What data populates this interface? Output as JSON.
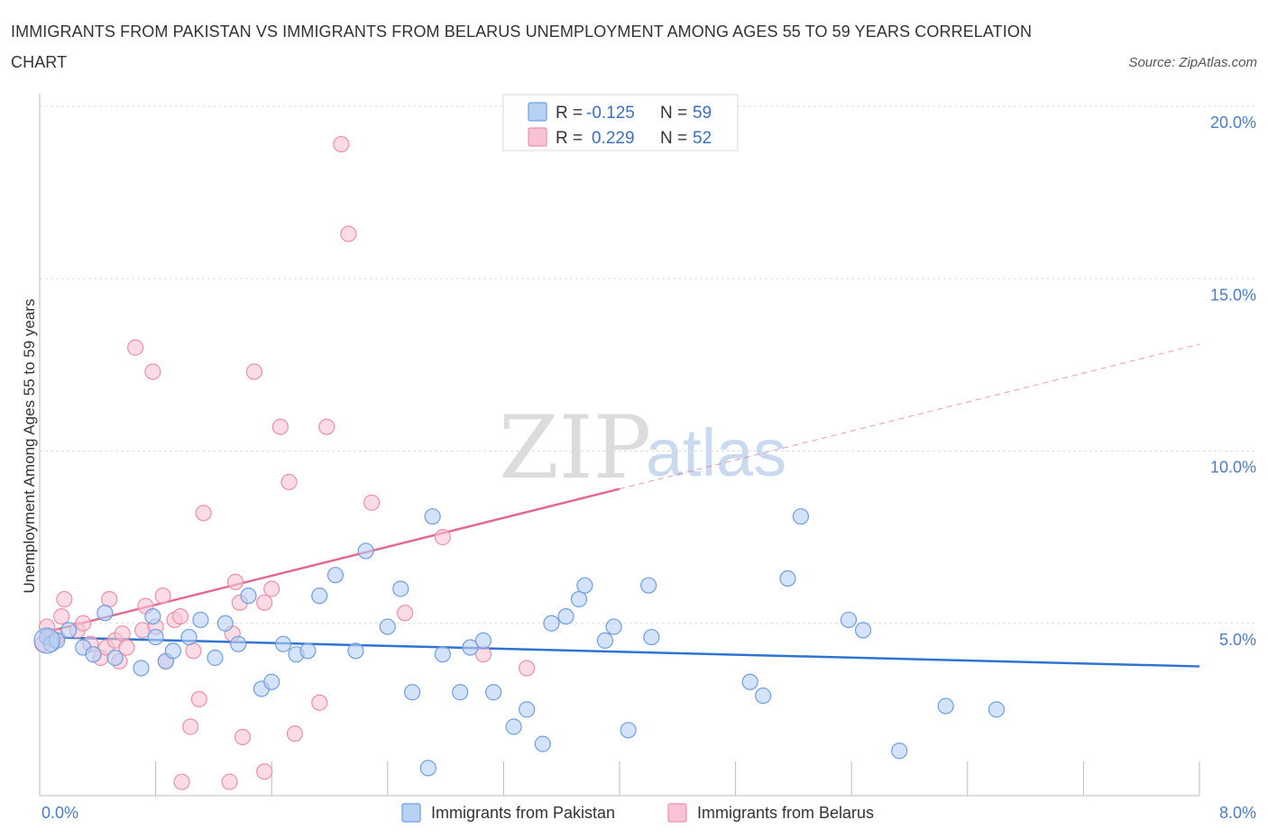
{
  "title": "IMMIGRANTS FROM PAKISTAN VS IMMIGRANTS FROM BELARUS UNEMPLOYMENT AMONG AGES 55 TO 59 YEARS CORRELATION CHART",
  "source": "Source: ZipAtlas.com",
  "watermark": {
    "zip": "ZIP",
    "atlas": "atlas"
  },
  "colors": {
    "pakistan_fill": "#b7d1f5",
    "pakistan_stroke": "#6f9ee0",
    "pakistan_line": "#2f74d0",
    "belarus_fill": "#f8c4d4",
    "belarus_stroke": "#ec8fac",
    "belarus_line": "#e26a92",
    "tick_text": "#4a7cc9",
    "grid": "#dddddd"
  },
  "legend": {
    "rows": [
      {
        "r_label": "R =",
        "r_value": "-0.125",
        "n_label": "N =",
        "n_value": "59"
      },
      {
        "r_label": "R =",
        "r_value": "0.229",
        "n_label": "N =",
        "n_value": "52"
      }
    ]
  },
  "chart_data": {
    "type": "scatter",
    "title": "IMMIGRANTS FROM PAKISTAN VS IMMIGRANTS FROM BELARUS UNEMPLOYMENT AMONG AGES 55 TO 59 YEARS CORRELATION CHART",
    "xlabel": "",
    "ylabel": "Unemployment Among Ages 55 to 59 years",
    "xlim": [
      0,
      8
    ],
    "ylim": [
      0,
      20
    ],
    "x_tick_labels": [
      "0.0%",
      "8.0%"
    ],
    "y_ticks": [
      5,
      10,
      15,
      20
    ],
    "y_tick_labels": [
      "5.0%",
      "10.0%",
      "15.0%",
      "20.0%"
    ],
    "grid": true,
    "legend_position": "top-center",
    "series": [
      {
        "name": "Immigrants from Pakistan",
        "r": -0.125,
        "n": 59,
        "trend": {
          "x0": 0,
          "y0": 4.6,
          "x1": 8,
          "y1": 3.75,
          "solid_until": 8
        },
        "points": [
          [
            0.05,
            4.6
          ],
          [
            0.08,
            4.4
          ],
          [
            0.12,
            4.5
          ],
          [
            0.2,
            4.8
          ],
          [
            0.3,
            4.3
          ],
          [
            0.37,
            4.1
          ],
          [
            0.45,
            5.3
          ],
          [
            0.52,
            4.0
          ],
          [
            0.7,
            3.7
          ],
          [
            0.78,
            5.2
          ],
          [
            0.8,
            4.6
          ],
          [
            0.87,
            3.9
          ],
          [
            0.92,
            4.2
          ],
          [
            1.03,
            4.6
          ],
          [
            1.11,
            5.1
          ],
          [
            1.21,
            4.0
          ],
          [
            1.28,
            5.0
          ],
          [
            1.37,
            4.4
          ],
          [
            1.44,
            5.8
          ],
          [
            1.53,
            3.1
          ],
          [
            1.6,
            3.3
          ],
          [
            1.68,
            4.4
          ],
          [
            1.77,
            4.1
          ],
          [
            1.85,
            4.2
          ],
          [
            1.93,
            5.8
          ],
          [
            2.04,
            6.4
          ],
          [
            2.18,
            4.2
          ],
          [
            2.25,
            7.1
          ],
          [
            2.4,
            4.9
          ],
          [
            2.49,
            6.0
          ],
          [
            2.57,
            3.0
          ],
          [
            2.68,
            0.8
          ],
          [
            2.71,
            8.1
          ],
          [
            2.78,
            4.1
          ],
          [
            2.9,
            3.0
          ],
          [
            2.97,
            4.3
          ],
          [
            3.06,
            4.5
          ],
          [
            3.13,
            3.0
          ],
          [
            3.27,
            2.0
          ],
          [
            3.36,
            2.5
          ],
          [
            3.47,
            1.5
          ],
          [
            3.53,
            5.0
          ],
          [
            3.63,
            5.2
          ],
          [
            3.72,
            5.7
          ],
          [
            3.76,
            6.1
          ],
          [
            3.9,
            4.5
          ],
          [
            3.96,
            4.9
          ],
          [
            4.06,
            1.9
          ],
          [
            4.2,
            6.1
          ],
          [
            4.22,
            4.6
          ],
          [
            4.9,
            3.3
          ],
          [
            4.99,
            2.9
          ],
          [
            5.16,
            6.3
          ],
          [
            5.25,
            8.1
          ],
          [
            5.58,
            5.1
          ],
          [
            5.68,
            4.8
          ],
          [
            5.93,
            1.3
          ],
          [
            6.25,
            2.6
          ],
          [
            6.6,
            2.5
          ]
        ]
      },
      {
        "name": "Immigrants from Belarus",
        "r": 0.229,
        "n": 52,
        "trend": {
          "x0": 0,
          "y0": 4.7,
          "x1": 8,
          "y1": 13.1,
          "solid_until": 4
        },
        "points": [
          [
            0.05,
            4.9
          ],
          [
            0.07,
            4.6
          ],
          [
            0.1,
            4.5
          ],
          [
            0.15,
            5.2
          ],
          [
            0.17,
            5.7
          ],
          [
            0.26,
            4.8
          ],
          [
            0.3,
            5.0
          ],
          [
            0.35,
            4.4
          ],
          [
            0.42,
            4.0
          ],
          [
            0.46,
            4.3
          ],
          [
            0.48,
            5.7
          ],
          [
            0.52,
            4.5
          ],
          [
            0.57,
            4.7
          ],
          [
            0.6,
            4.3
          ],
          [
            0.66,
            13.0
          ],
          [
            0.71,
            4.8
          ],
          [
            0.73,
            5.5
          ],
          [
            0.78,
            12.3
          ],
          [
            0.8,
            4.9
          ],
          [
            0.85,
            5.8
          ],
          [
            0.87,
            3.9
          ],
          [
            0.93,
            5.1
          ],
          [
            0.97,
            5.2
          ],
          [
            0.98,
            0.4
          ],
          [
            1.04,
            2.0
          ],
          [
            1.06,
            4.2
          ],
          [
            1.1,
            2.8
          ],
          [
            1.13,
            8.2
          ],
          [
            1.31,
            0.4
          ],
          [
            1.33,
            4.7
          ],
          [
            1.35,
            6.2
          ],
          [
            1.38,
            5.6
          ],
          [
            1.4,
            1.7
          ],
          [
            1.48,
            12.3
          ],
          [
            1.55,
            5.6
          ],
          [
            1.55,
            0.7
          ],
          [
            1.6,
            6.0
          ],
          [
            1.66,
            10.7
          ],
          [
            1.72,
            9.1
          ],
          [
            1.76,
            1.8
          ],
          [
            1.93,
            2.7
          ],
          [
            1.98,
            10.7
          ],
          [
            2.08,
            18.9
          ],
          [
            2.13,
            16.3
          ],
          [
            2.29,
            8.5
          ],
          [
            2.52,
            5.3
          ],
          [
            2.78,
            7.5
          ],
          [
            3.06,
            4.1
          ],
          [
            3.36,
            3.7
          ],
          [
            0.02,
            4.4
          ],
          [
            0.12,
            4.6
          ],
          [
            0.55,
            3.9
          ]
        ]
      }
    ]
  }
}
